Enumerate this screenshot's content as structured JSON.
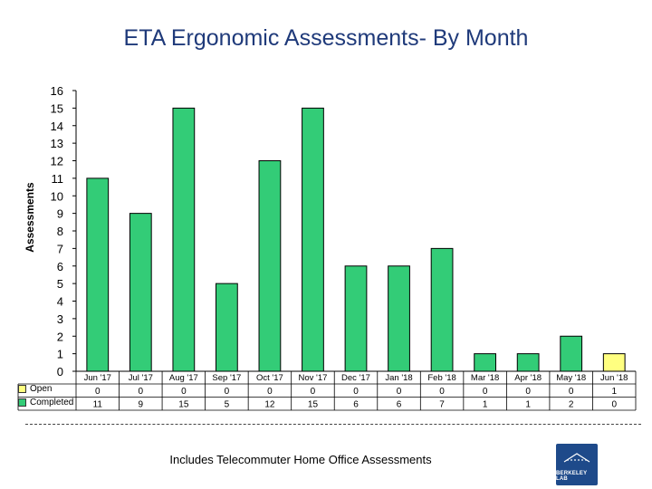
{
  "chart_data": {
    "type": "bar",
    "title": "ETA Ergonomic Assessments- By Month",
    "ylabel": "Assessments",
    "xlabel": "",
    "ylim": [
      0,
      16
    ],
    "yticks": [
      0,
      1,
      2,
      3,
      4,
      5,
      6,
      7,
      8,
      9,
      10,
      11,
      12,
      13,
      14,
      15,
      16
    ],
    "categories": [
      "Jun '17",
      "Jul '17",
      "Aug '17",
      "Sep '17",
      "Oct '17",
      "Nov '17",
      "Dec '17",
      "Jan '18",
      "Feb '18",
      "Mar '18",
      "Apr '18",
      "May '18",
      "Jun '18"
    ],
    "series": [
      {
        "name": "Open",
        "values": [
          0,
          0,
          0,
          0,
          0,
          0,
          0,
          0,
          0,
          0,
          0,
          0,
          1
        ],
        "color": "#ffff80"
      },
      {
        "name": "Completed",
        "values": [
          11,
          9,
          15,
          5,
          12,
          15,
          6,
          6,
          7,
          1,
          1,
          2,
          0
        ],
        "color": "#33cc77"
      }
    ],
    "stacked": true,
    "data_table": true
  },
  "footnote": "Includes Telecommuter Home Office Assessments",
  "logo": {
    "text": "BERKELEY LAB"
  }
}
